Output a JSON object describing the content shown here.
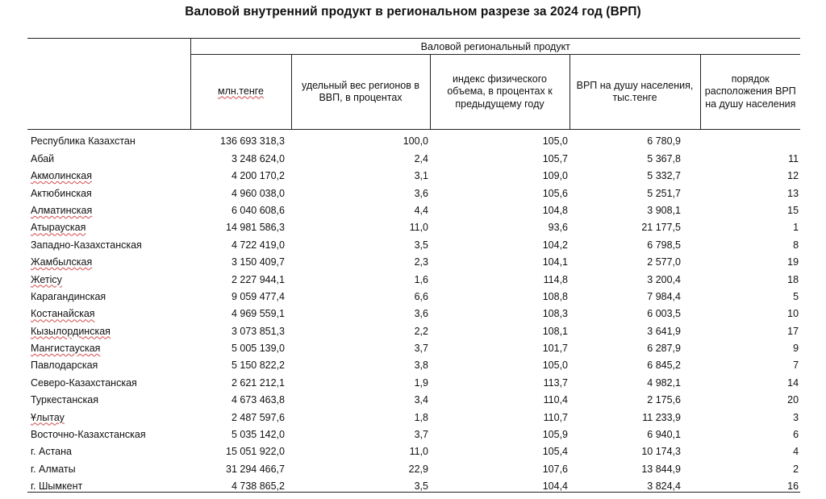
{
  "title": "Валовой внутренний продукт в региональном разрезе за 2024 год (ВРП)",
  "group_header": "Валовой региональный продукт",
  "columns": {
    "mln": "млн.тенге",
    "share": "удельный вес регионов в ВВП, в процентах",
    "index": "индекс физического объема, в процентах к предыдущему году",
    "per_capita": "ВРП на душу населения, тыс.тенге",
    "rank": "порядок расположения ВРП на душу населения"
  },
  "rows": [
    {
      "name": "Республика Казахстан",
      "mln": "136 693 318,3",
      "share": "100,0",
      "index": "105,0",
      "per_capita": "6 780,9",
      "rank": "",
      "wavy": false
    },
    {
      "name": "Абай",
      "mln": "3 248 624,0",
      "share": "2,4",
      "index": "105,7",
      "per_capita": "5 367,8",
      "rank": "11",
      "wavy": false
    },
    {
      "name": "Акмолинская",
      "mln": "4 200 170,2",
      "share": "3,1",
      "index": "109,0",
      "per_capita": "5 332,7",
      "rank": "12",
      "wavy": true
    },
    {
      "name": "Актюбинская",
      "mln": "4 960 038,0",
      "share": "3,6",
      "index": "105,6",
      "per_capita": "5 251,7",
      "rank": "13",
      "wavy": false
    },
    {
      "name": "Алматинская",
      "mln": "6 040 608,6",
      "share": "4,4",
      "index": "104,8",
      "per_capita": "3 908,1",
      "rank": "15",
      "wavy": true
    },
    {
      "name": "Атырауская",
      "mln": "14 981 586,3",
      "share": "11,0",
      "index": "93,6",
      "per_capita": "21 177,5",
      "rank": "1",
      "wavy": true
    },
    {
      "name": "Западно-Казахстанская",
      "mln": "4 722 419,0",
      "share": "3,5",
      "index": "104,2",
      "per_capita": "6 798,5",
      "rank": "8",
      "wavy": false
    },
    {
      "name": "Жамбылская",
      "mln": "3 150 409,7",
      "share": "2,3",
      "index": "104,1",
      "per_capita": "2 577,0",
      "rank": "19",
      "wavy": true
    },
    {
      "name": "Жетісу",
      "mln": "2 227 944,1",
      "share": "1,6",
      "index": "114,8",
      "per_capita": "3 200,4",
      "rank": "18",
      "wavy": true
    },
    {
      "name": "Карагандинская",
      "mln": "9 059 477,4",
      "share": "6,6",
      "index": "108,8",
      "per_capita": "7 984,4",
      "rank": "5",
      "wavy": false
    },
    {
      "name": "Костанайская",
      "mln": "4 969 559,1",
      "share": "3,6",
      "index": "108,3",
      "per_capita": "6 003,5",
      "rank": "10",
      "wavy": true
    },
    {
      "name": "Кызылординская",
      "mln": "3 073 851,3",
      "share": "2,2",
      "index": "108,1",
      "per_capita": "3 641,9",
      "rank": "17",
      "wavy": true
    },
    {
      "name": "Мангистауская",
      "mln": "5 005 139,0",
      "share": "3,7",
      "index": "101,7",
      "per_capita": "6 287,9",
      "rank": "9",
      "wavy": true
    },
    {
      "name": "Павлодарская",
      "mln": "5 150 822,2",
      "share": "3,8",
      "index": "105,0",
      "per_capita": "6 845,2",
      "rank": "7",
      "wavy": false
    },
    {
      "name": "Северо-Казахстанская",
      "mln": "2 621 212,1",
      "share": "1,9",
      "index": "113,7",
      "per_capita": "4 982,1",
      "rank": "14",
      "wavy": false
    },
    {
      "name": "Туркестанская",
      "mln": "4 673 463,8",
      "share": "3,4",
      "index": "110,4",
      "per_capita": "2 175,6",
      "rank": "20",
      "wavy": false
    },
    {
      "name": "Ұлытау",
      "mln": "2 487 597,6",
      "share": "1,8",
      "index": "110,7",
      "per_capita": "11 233,9",
      "rank": "3",
      "wavy": true
    },
    {
      "name": "Восточно-Казахстанская",
      "mln": "5 035 142,0",
      "share": "3,7",
      "index": "105,9",
      "per_capita": "6 940,1",
      "rank": "6",
      "wavy": false
    },
    {
      "name": "г. Астана",
      "mln": "15 051 922,0",
      "share": "11,0",
      "index": "105,4",
      "per_capita": "10 174,3",
      "rank": "4",
      "wavy": false
    },
    {
      "name": "г. Алматы",
      "mln": "31 294 466,7",
      "share": "22,9",
      "index": "107,6",
      "per_capita": "13 844,9",
      "rank": "2",
      "wavy": false
    },
    {
      "name": "г. Шымкент",
      "mln": "4 738 865,2",
      "share": "3,5",
      "index": "104,4",
      "per_capita": "3 824,4",
      "rank": "16",
      "wavy": false
    }
  ]
}
